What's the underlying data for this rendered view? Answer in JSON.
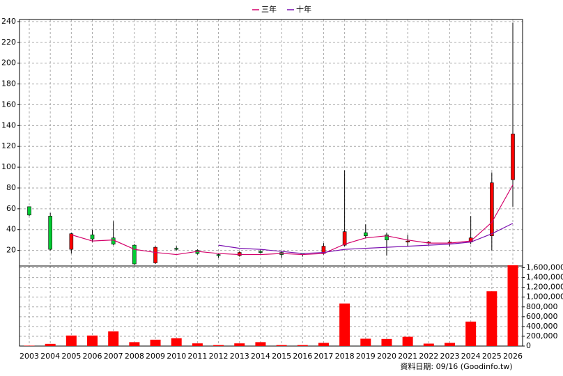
{
  "chart_data": {
    "type": "candlestick",
    "categories": [
      "2003",
      "2004",
      "2005",
      "2006",
      "2007",
      "2008",
      "2009",
      "2010",
      "2011",
      "2012",
      "2013",
      "2014",
      "2015",
      "2016",
      "2017",
      "2018",
      "2019",
      "2020",
      "2021",
      "2022",
      "2023",
      "2024",
      "2025",
      "2026"
    ],
    "open": [
      62,
      53,
      21,
      35,
      32,
      25,
      8,
      22,
      20,
      16,
      15,
      19,
      18,
      17,
      17,
      25,
      37,
      35,
      28,
      28,
      27,
      28,
      34,
      88
    ],
    "high": [
      62,
      56,
      37,
      40,
      48,
      26,
      24,
      24,
      21,
      17,
      19,
      21,
      19,
      17,
      27,
      97,
      45,
      37,
      35,
      29,
      30,
      53,
      95,
      239
    ],
    "low": [
      53,
      20,
      17,
      28,
      25,
      6,
      7,
      20,
      16,
      13,
      14,
      17,
      13,
      14,
      16,
      24,
      32,
      15,
      24,
      25,
      24,
      26,
      20,
      62
    ],
    "close": [
      54,
      21,
      36,
      31,
      26,
      7,
      23,
      21,
      17,
      15,
      18,
      18,
      16,
      16,
      24,
      38,
      34,
      30,
      29,
      28,
      28,
      32,
      85,
      132
    ],
    "up_color": "#ff0000",
    "down_color": "#00cc33",
    "ylim": [
      5,
      242
    ],
    "yticks": [
      20,
      40,
      60,
      80,
      100,
      120,
      140,
      160,
      180,
      200,
      220,
      240
    ],
    "grid": true,
    "series": [
      {
        "name": "三年",
        "color": "#d4006a",
        "values": [
          null,
          null,
          35,
          29,
          30,
          21,
          18,
          16,
          19,
          17,
          16,
          16,
          17,
          16,
          17,
          26,
          32,
          34,
          30,
          27,
          27,
          29,
          47,
          83
        ]
      },
      {
        "name": "十年",
        "color": "#7a10b0",
        "values": [
          null,
          null,
          null,
          null,
          null,
          null,
          null,
          null,
          null,
          25,
          22,
          21,
          19,
          17,
          18,
          21,
          22,
          23,
          24,
          25,
          26,
          28,
          36,
          46
        ]
      }
    ],
    "volume": {
      "color": "#ff0000",
      "values": [
        8000,
        45000,
        215000,
        215000,
        300000,
        80000,
        130000,
        160000,
        55000,
        20000,
        55000,
        80000,
        20000,
        20000,
        65000,
        870000,
        150000,
        145000,
        190000,
        50000,
        65000,
        500000,
        1120000,
        1650000
      ],
      "ylim": [
        0,
        1650000
      ],
      "yticks": [
        {
          "value": 0,
          "label": "0"
        },
        {
          "value": 200000,
          "label": "200,000"
        },
        {
          "value": 400000,
          "label": "400,000"
        },
        {
          "value": 600000,
          "label": "600,000"
        },
        {
          "value": 800000,
          "label": "800,000"
        },
        {
          "value": 1000000,
          "label": "1,000,000"
        },
        {
          "value": 1200000,
          "label": "1,200,000"
        },
        {
          "value": 1400000,
          "label": "1,400,000"
        },
        {
          "value": 1600000,
          "label": "1,600,000"
        }
      ]
    },
    "footer": "資料日期: 09/16 (Goodinfo.tw)"
  }
}
